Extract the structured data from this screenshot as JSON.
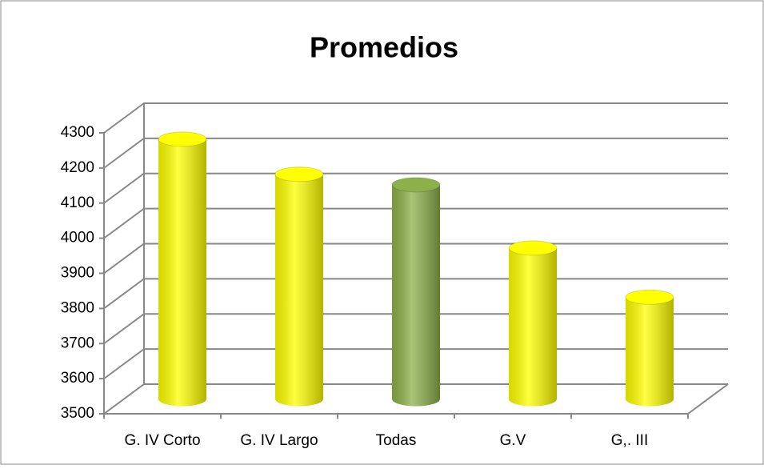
{
  "chart_data": {
    "type": "bar3d",
    "title": "Promedios",
    "categories": [
      "G. IV Corto",
      "G. IV Largo",
      "Todas",
      "G.V",
      "G,. III"
    ],
    "values": [
      4240,
      4140,
      4110,
      3930,
      3790
    ],
    "colors": [
      "#ffff00",
      "#ffff00",
      "#8db04a",
      "#ffff00",
      "#ffff00"
    ],
    "ylim": [
      3500,
      4300
    ],
    "yticks": [
      3500,
      3600,
      3700,
      3800,
      3900,
      4000,
      4100,
      4200,
      4300
    ],
    "grid": true
  }
}
